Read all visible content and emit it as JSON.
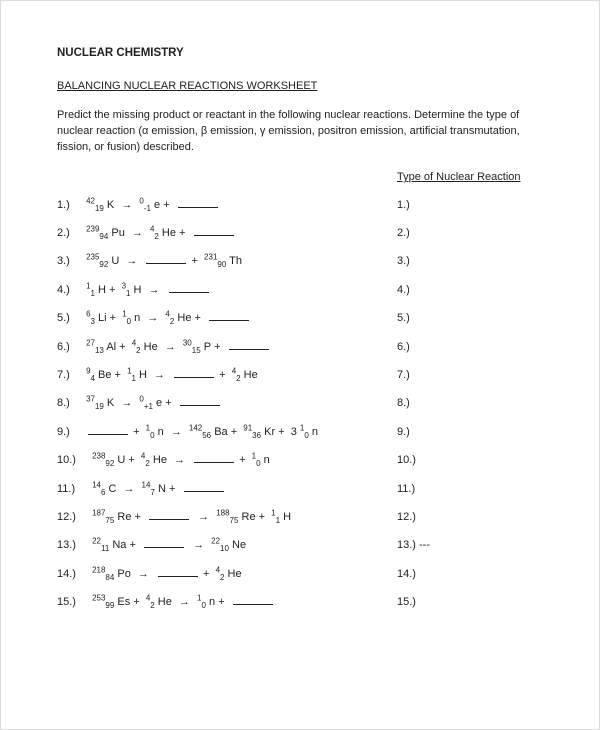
{
  "title": "NUCLEAR CHEMISTRY",
  "subtitle": "BALANCING NUCLEAR REACTIONS WORKSHEET",
  "instructions": "Predict the missing product or reactant in the following nuclear reactions.  Determine the type of nuclear reaction (α emission, β emission, γ emission, positron emission, artificial transmutation, fission, or fusion) described.",
  "column_header": "Type of Nuclear Reaction",
  "arrow": "→",
  "items": [
    {
      "n": "1.)",
      "eq": [
        {
          "t": "iso",
          "a": "42",
          "z": "19",
          "s": "K"
        },
        {
          "t": "arr"
        },
        {
          "t": "iso",
          "a": "0",
          "z": "-1",
          "s": "e"
        },
        {
          "t": "plus"
        },
        {
          "t": "blank"
        }
      ],
      "ans": "1.)"
    },
    {
      "n": "2.)",
      "eq": [
        {
          "t": "iso",
          "a": "239",
          "z": "94",
          "s": "Pu"
        },
        {
          "t": "arr"
        },
        {
          "t": "iso",
          "a": "4",
          "z": "2",
          "s": "He"
        },
        {
          "t": "plus"
        },
        {
          "t": "blank"
        }
      ],
      "ans": "2.)"
    },
    {
      "n": "3.)",
      "eq": [
        {
          "t": "iso",
          "a": "235",
          "z": "92",
          "s": "U"
        },
        {
          "t": "arr"
        },
        {
          "t": "blank"
        },
        {
          "t": "plus"
        },
        {
          "t": "iso",
          "a": "231",
          "z": "90",
          "s": "Th"
        }
      ],
      "ans": "3.)"
    },
    {
      "n": "4.)",
      "eq": [
        {
          "t": "iso",
          "a": "1",
          "z": "1",
          "s": "H"
        },
        {
          "t": "plus"
        },
        {
          "t": "iso",
          "a": "3",
          "z": "1",
          "s": "H"
        },
        {
          "t": "arr"
        },
        {
          "t": "blank"
        }
      ],
      "ans": "4.)"
    },
    {
      "n": "5.)",
      "eq": [
        {
          "t": "iso",
          "a": "6",
          "z": "3",
          "s": "Li"
        },
        {
          "t": "plus"
        },
        {
          "t": "iso",
          "a": "1",
          "z": "0",
          "s": "n"
        },
        {
          "t": "arr"
        },
        {
          "t": "iso",
          "a": "4",
          "z": "2",
          "s": "He"
        },
        {
          "t": "plus"
        },
        {
          "t": "blank"
        }
      ],
      "ans": "5.)"
    },
    {
      "n": "6.)",
      "eq": [
        {
          "t": "iso",
          "a": "27",
          "z": "13",
          "s": "Al"
        },
        {
          "t": "plus"
        },
        {
          "t": "iso",
          "a": "4",
          "z": "2",
          "s": "He"
        },
        {
          "t": "arr"
        },
        {
          "t": "iso",
          "a": "30",
          "z": "15",
          "s": "P"
        },
        {
          "t": "plus"
        },
        {
          "t": "blank"
        }
      ],
      "ans": "6.)"
    },
    {
      "n": "7.)",
      "eq": [
        {
          "t": "iso",
          "a": "9",
          "z": "4",
          "s": "Be"
        },
        {
          "t": "plus"
        },
        {
          "t": "iso",
          "a": "1",
          "z": "1",
          "s": "H"
        },
        {
          "t": "arr"
        },
        {
          "t": "blank"
        },
        {
          "t": "plus"
        },
        {
          "t": "iso",
          "a": "4",
          "z": "2",
          "s": "He"
        }
      ],
      "ans": "7.)"
    },
    {
      "n": "8.)",
      "eq": [
        {
          "t": "iso",
          "a": "37",
          "z": "19",
          "s": "K"
        },
        {
          "t": "arr"
        },
        {
          "t": "iso",
          "a": "0",
          "z": "+1",
          "s": "e"
        },
        {
          "t": "plus"
        },
        {
          "t": "blank"
        }
      ],
      "ans": "8.)"
    },
    {
      "n": "9.)",
      "eq": [
        {
          "t": "blank"
        },
        {
          "t": "plus"
        },
        {
          "t": "iso",
          "a": "1",
          "z": "0",
          "s": "n"
        },
        {
          "t": "arr"
        },
        {
          "t": "iso",
          "a": "142",
          "z": "56",
          "s": "Ba"
        },
        {
          "t": "plus"
        },
        {
          "t": "iso",
          "a": "91",
          "z": "36",
          "s": "Kr"
        },
        {
          "t": "plus"
        },
        {
          "t": "txt",
          "v": "3 "
        },
        {
          "t": "iso",
          "a": "1",
          "z": "0",
          "s": "n"
        }
      ],
      "ans": "9.)"
    },
    {
      "n": "10.)",
      "eq": [
        {
          "t": "iso",
          "a": "238",
          "z": "92",
          "s": "U"
        },
        {
          "t": "plus"
        },
        {
          "t": "iso",
          "a": "4",
          "z": "2",
          "s": "He"
        },
        {
          "t": "arr"
        },
        {
          "t": "blank"
        },
        {
          "t": "plus"
        },
        {
          "t": "iso",
          "a": "1",
          "z": "0",
          "s": "n"
        }
      ],
      "ans": "10.)"
    },
    {
      "n": "11.)",
      "eq": [
        {
          "t": "iso",
          "a": "14",
          "z": "6",
          "s": "C"
        },
        {
          "t": "arr"
        },
        {
          "t": "iso",
          "a": "14",
          "z": "7",
          "s": "N"
        },
        {
          "t": "plus"
        },
        {
          "t": "blank"
        }
      ],
      "ans": "11.)"
    },
    {
      "n": "12.)",
      "eq": [
        {
          "t": "iso",
          "a": "187",
          "z": "75",
          "s": "Re"
        },
        {
          "t": "plus"
        },
        {
          "t": "blank"
        },
        {
          "t": "arr"
        },
        {
          "t": "iso",
          "a": "188",
          "z": "75",
          "s": "Re"
        },
        {
          "t": "plus"
        },
        {
          "t": "iso",
          "a": "1",
          "z": "1",
          "s": "H"
        }
      ],
      "ans": "12.)"
    },
    {
      "n": "13.)",
      "eq": [
        {
          "t": "iso",
          "a": "22",
          "z": "11",
          "s": "Na"
        },
        {
          "t": "plus"
        },
        {
          "t": "blank"
        },
        {
          "t": "arr"
        },
        {
          "t": "iso",
          "a": "22",
          "z": "10",
          "s": "Ne"
        }
      ],
      "ans": "13.) ---"
    },
    {
      "n": "14.)",
      "eq": [
        {
          "t": "iso",
          "a": "218",
          "z": "84",
          "s": "Po"
        },
        {
          "t": "arr"
        },
        {
          "t": "blank"
        },
        {
          "t": "plus"
        },
        {
          "t": "iso",
          "a": "4",
          "z": "2",
          "s": "He"
        }
      ],
      "ans": "14.)"
    },
    {
      "n": "15.)",
      "eq": [
        {
          "t": "iso",
          "a": "253",
          "z": "99",
          "s": "Es"
        },
        {
          "t": "plus"
        },
        {
          "t": "iso",
          "a": "4",
          "z": "2",
          "s": "He"
        },
        {
          "t": "arr"
        },
        {
          "t": "iso",
          "a": "1",
          "z": "0",
          "s": "n"
        },
        {
          "t": "plus"
        },
        {
          "t": "blank"
        }
      ],
      "ans": "15.)"
    }
  ]
}
